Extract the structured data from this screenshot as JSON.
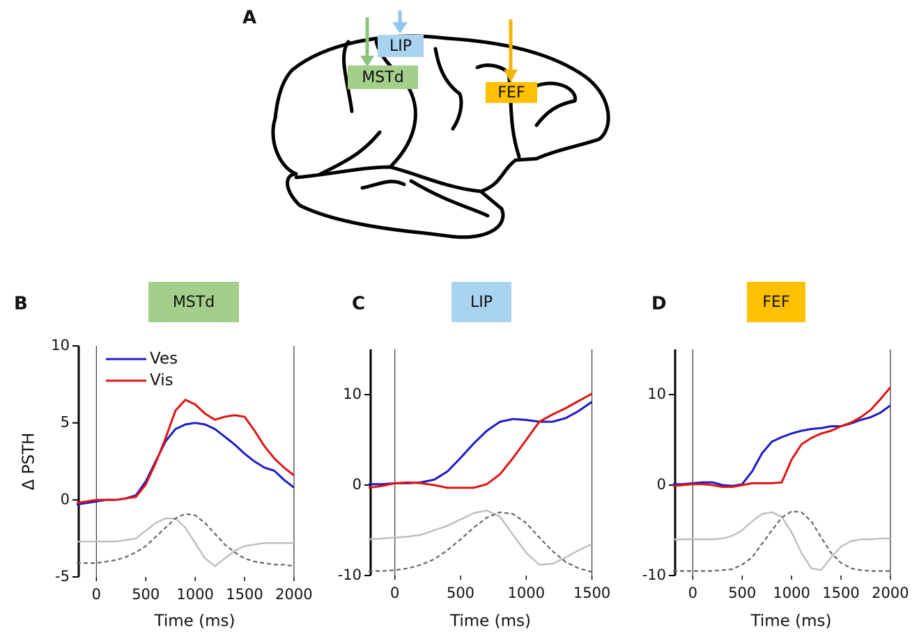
{
  "panel_a": {
    "label": "A",
    "areas": [
      {
        "name": "LIP",
        "color": "#a9d3ef"
      },
      {
        "name": "MSTd",
        "color": "#a3cf8a"
      },
      {
        "name": "FEF",
        "color": "#ffc000"
      }
    ]
  },
  "chart_data": [
    {
      "type": "line",
      "panel": "B",
      "title": "MSTd",
      "title_color": "#a3cf8a",
      "ylabel": "Δ PSTH",
      "xlabel": "Time (ms)",
      "xlim": [
        -200,
        2050
      ],
      "ylim": [
        -5,
        10
      ],
      "xticks": [
        0,
        500,
        1000,
        1500,
        2000
      ],
      "yticks": [
        -5,
        0,
        5,
        10
      ],
      "vlines": [
        0,
        2000
      ],
      "legend": "upper left",
      "x": [
        -200,
        -100,
        0,
        100,
        200,
        300,
        400,
        500,
        600,
        700,
        800,
        900,
        1000,
        1100,
        1200,
        1300,
        1400,
        1500,
        1600,
        1700,
        1800,
        1900,
        2000
      ],
      "series": [
        {
          "name": "Ves",
          "color": "#1c1cc8",
          "values": [
            -0.3,
            -0.2,
            -0.1,
            0,
            0,
            0.1,
            0.3,
            1.2,
            2.5,
            3.8,
            4.6,
            4.9,
            5.0,
            4.9,
            4.6,
            4.1,
            3.6,
            3.0,
            2.5,
            2.1,
            1.9,
            1.3,
            0.8
          ]
        },
        {
          "name": "Vis",
          "color": "#e01414",
          "values": [
            -0.2,
            -0.1,
            0,
            0,
            0,
            0.1,
            0.2,
            1.0,
            2.4,
            4.0,
            5.8,
            6.5,
            6.2,
            5.6,
            5.2,
            5.4,
            5.5,
            5.4,
            4.5,
            3.5,
            2.7,
            2.1,
            1.6
          ]
        },
        {
          "color": "#bdbdbd",
          "values": [
            -2.7,
            -2.7,
            -2.7,
            -2.7,
            -2.7,
            -2.6,
            -2.5,
            -2.0,
            -1.5,
            -1.2,
            -1.2,
            -1.8,
            -2.8,
            -3.8,
            -4.3,
            -3.8,
            -3.3,
            -3.0,
            -2.9,
            -2.8,
            -2.8,
            -2.8,
            -2.8
          ]
        },
        {
          "color": "#666666",
          "style": "dashed",
          "values": [
            -4.1,
            -4.1,
            -4.1,
            -4.0,
            -3.9,
            -3.7,
            -3.4,
            -3.0,
            -2.4,
            -1.8,
            -1.2,
            -0.9,
            -1.0,
            -1.5,
            -2.2,
            -2.9,
            -3.4,
            -3.8,
            -4.0,
            -4.1,
            -4.2,
            -4.2,
            -4.3
          ]
        }
      ]
    },
    {
      "type": "line",
      "panel": "C",
      "title": "LIP",
      "title_color": "#a9d3ef",
      "xlabel": "Time (ms)",
      "xlim": [
        -200,
        1550
      ],
      "ylim": [
        -10,
        15
      ],
      "xticks": [
        0,
        500,
        1000,
        1500
      ],
      "yticks": [
        -10,
        0,
        10
      ],
      "vlines": [
        0,
        1500
      ],
      "x": [
        -200,
        -100,
        0,
        100,
        200,
        300,
        400,
        500,
        600,
        700,
        800,
        900,
        1000,
        1100,
        1200,
        1300,
        1400,
        1500
      ],
      "series": [
        {
          "color": "#1c1cc8",
          "values": [
            0.1,
            0.1,
            0.2,
            0.2,
            0.3,
            0.6,
            1.5,
            3,
            4.6,
            6,
            7,
            7.3,
            7.2,
            7,
            7,
            7.4,
            8.2,
            9.2
          ]
        },
        {
          "color": "#e01414",
          "values": [
            -0.3,
            -0.1,
            0.2,
            0.3,
            0.2,
            0,
            -0.3,
            -0.3,
            -0.3,
            0.1,
            1.2,
            3,
            5,
            7,
            7.8,
            8.5,
            9.3,
            10.1
          ]
        },
        {
          "color": "#bdbdbd",
          "values": [
            -6,
            -5.9,
            -5.8,
            -5.7,
            -5.5,
            -5,
            -4.5,
            -3.8,
            -3.1,
            -2.8,
            -3.5,
            -5.5,
            -7.5,
            -8.8,
            -8.7,
            -8,
            -7.2,
            -6.5
          ]
        },
        {
          "color": "#666666",
          "style": "dashed",
          "values": [
            -9.5,
            -9.5,
            -9.4,
            -9.2,
            -8.8,
            -8.2,
            -7.2,
            -6,
            -4.7,
            -3.6,
            -3,
            -3.2,
            -4.2,
            -5.8,
            -7.3,
            -8.5,
            -9.2,
            -9.6
          ]
        }
      ]
    },
    {
      "type": "line",
      "panel": "D",
      "title": "FEF",
      "title_color": "#ffc000",
      "xlabel": "Time (ms)",
      "xlim": [
        -200,
        2050
      ],
      "ylim": [
        -10,
        15
      ],
      "xticks": [
        0,
        500,
        1000,
        1500,
        2000
      ],
      "yticks": [
        -10,
        0,
        10
      ],
      "vlines": [
        0,
        2000
      ],
      "x": [
        -200,
        -100,
        0,
        100,
        200,
        300,
        400,
        500,
        600,
        700,
        800,
        900,
        1000,
        1100,
        1200,
        1300,
        1400,
        1500,
        1600,
        1700,
        1800,
        1900,
        2000
      ],
      "series": [
        {
          "color": "#1c1cc8",
          "values": [
            0.1,
            0.1,
            0.2,
            0.3,
            0.3,
            0,
            -0.1,
            0.1,
            1.5,
            3.5,
            4.8,
            5.3,
            5.7,
            6,
            6.2,
            6.3,
            6.5,
            6.5,
            6.8,
            7.2,
            7.5,
            8,
            8.8
          ]
        },
        {
          "color": "#e01414",
          "values": [
            -0.1,
            0,
            0.1,
            0.1,
            0,
            -0.2,
            -0.2,
            0,
            0.2,
            0.2,
            0.2,
            0.3,
            2.8,
            4.5,
            5.2,
            5.7,
            6,
            6.5,
            6.9,
            7.5,
            8.3,
            9.5,
            10.8
          ]
        },
        {
          "color": "#bdbdbd",
          "values": [
            -6,
            -6,
            -6,
            -6,
            -6,
            -5.9,
            -5.6,
            -5,
            -4,
            -3.2,
            -3,
            -3.5,
            -5.2,
            -7.5,
            -9.2,
            -9.4,
            -8,
            -6.8,
            -6.2,
            -6,
            -6,
            -5.9,
            -5.9
          ]
        },
        {
          "color": "#666666",
          "style": "dashed",
          "values": [
            -9.5,
            -9.5,
            -9.5,
            -9.5,
            -9.5,
            -9.4,
            -9.3,
            -8.8,
            -8,
            -6.5,
            -5,
            -3.6,
            -2.9,
            -3,
            -4,
            -5.8,
            -7.5,
            -8.6,
            -9.2,
            -9.4,
            -9.5,
            -9.5,
            -9.5
          ]
        }
      ]
    }
  ]
}
